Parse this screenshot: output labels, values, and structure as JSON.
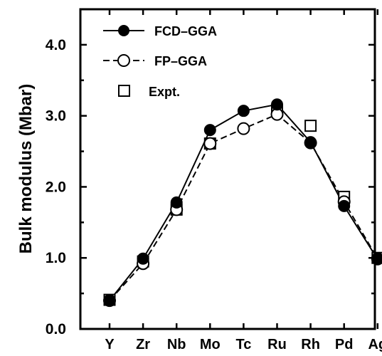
{
  "chart_data": {
    "type": "line",
    "title": "",
    "xlabel": "",
    "ylabel": "Bulk modulus  (Mbar)",
    "categories": [
      "Y",
      "Zr",
      "Nb",
      "Mo",
      "Tc",
      "Ru",
      "Rh",
      "Pd",
      "Ag"
    ],
    "ylim": [
      0.0,
      4.5
    ],
    "yticks": [
      0.0,
      1.0,
      2.0,
      3.0,
      4.0
    ],
    "ytick_labels": [
      "0.0",
      "1.0",
      "2.0",
      "3.0",
      "4.0"
    ],
    "grid": false,
    "legend_position": "top-left",
    "series": [
      {
        "name": "FCD–GGA",
        "style": "solid line, filled circle markers",
        "color": "#000000",
        "values": [
          0.4,
          0.99,
          1.78,
          2.8,
          3.07,
          3.16,
          2.63,
          1.73,
          0.98
        ]
      },
      {
        "name": "FP–GGA",
        "style": "dashed line, open circle markers",
        "color": "#000000",
        "values": [
          0.4,
          0.92,
          1.68,
          2.61,
          2.82,
          3.02,
          2.62,
          1.79,
          0.99
        ]
      },
      {
        "name": "Expt.",
        "style": "open square markers",
        "color": "#000000",
        "values": [
          0.41,
          0.95,
          1.68,
          2.61,
          null,
          3.07,
          2.86,
          1.86,
          1.0
        ]
      }
    ]
  }
}
